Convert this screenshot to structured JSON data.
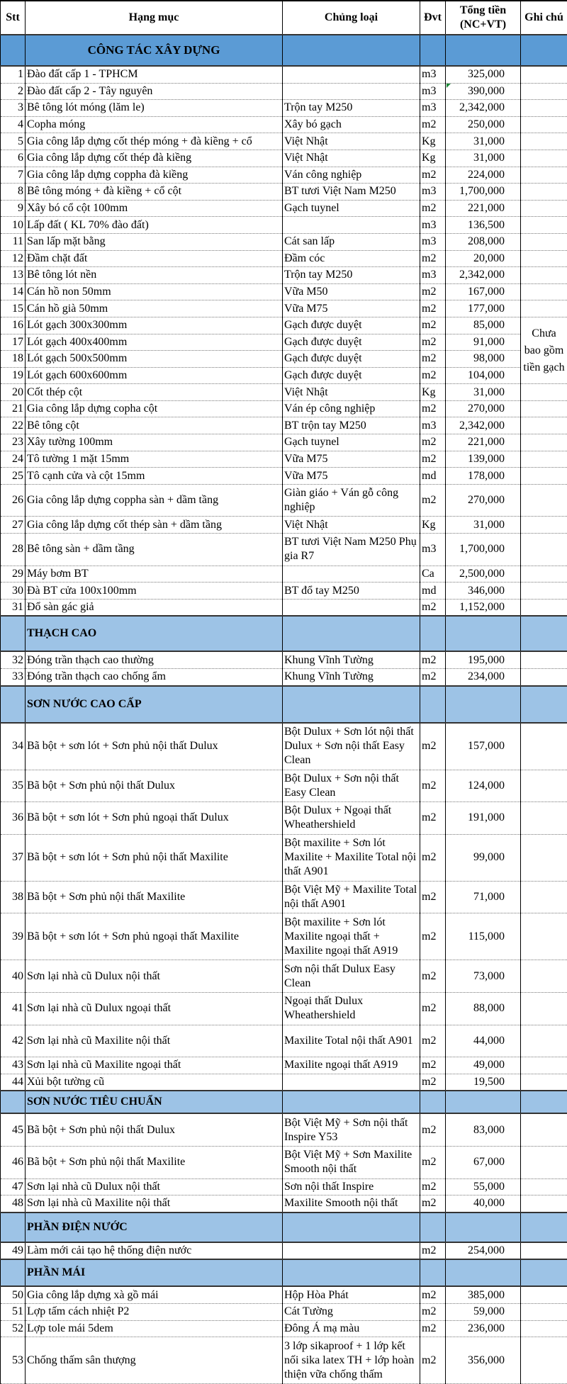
{
  "headers": {
    "stt": "Stt",
    "item": "Hạng mục",
    "type": "Chủng loại",
    "unit": "Đvt",
    "total": "Tổng tiền (NC+VT)",
    "note": "Ghi chú"
  },
  "colors": {
    "section_primary": "#5b9bd5",
    "section_secondary": "#9dc3e6",
    "error_indicator": "#1e8a3a"
  },
  "notes": {
    "tiles": "Chưa bao gồm tiền gạch"
  },
  "sections": [
    {
      "title": "CÔNG TÁC XÂY DỰNG",
      "rows": [
        {
          "stt": "1",
          "item": "Đào đất cấp 1 - TPHCM",
          "type": "",
          "unit": "m3",
          "total": "325,000"
        },
        {
          "stt": "2",
          "item": "Đào đất cấp 2 - Tây nguyên",
          "type": "",
          "unit": "m3",
          "total": "390,000"
        },
        {
          "stt": "3",
          "item": "Bê tông lót móng (lăm le)",
          "type": "Trộn tay M250",
          "unit": "m3",
          "total": "2,342,000"
        },
        {
          "stt": "4",
          "item": "Copha móng",
          "type": "Xây bó gạch",
          "unit": "m2",
          "total": "250,000"
        },
        {
          "stt": "5",
          "item": "Gia công lắp dựng cốt thép móng + đà kiềng + cổ",
          "type": "Việt Nhật",
          "unit": "Kg",
          "total": "31,000"
        },
        {
          "stt": "6",
          "item": "Gia công lắp dựng cốt thép đà kiềng",
          "type": "Việt Nhật",
          "unit": "Kg",
          "total": "31,000"
        },
        {
          "stt": "7",
          "item": "Gia công lắp dựng coppha đà kiềng",
          "type": "Ván công nghiệp",
          "unit": "m2",
          "total": "224,000"
        },
        {
          "stt": "8",
          "item": "Bê tông móng + đà kiềng + cổ cột",
          "type": "BT tươi Việt Nam M250",
          "unit": "m3",
          "total": "1,700,000"
        },
        {
          "stt": "9",
          "item": "Xây bó cổ cột 100mm",
          "type": "Gạch tuynel",
          "unit": "m2",
          "total": "221,000"
        },
        {
          "stt": "10",
          "item": "Lấp đất ( KL 70% đào đất)",
          "type": "",
          "unit": "m3",
          "total": "136,500"
        },
        {
          "stt": "11",
          "item": "San lấp mặt bằng",
          "type": "Cát san lấp",
          "unit": "m3",
          "total": "208,000"
        },
        {
          "stt": "12",
          "item": "Đầm chặt đất",
          "type": "Đầm cóc",
          "unit": "m2",
          "total": "20,000"
        },
        {
          "stt": "13",
          "item": "Bê tông lót nền",
          "type": "Trộn tay M250",
          "unit": "m3",
          "total": "2,342,000"
        },
        {
          "stt": "14",
          "item": "Cán hồ non 50mm",
          "type": "Vữa M50",
          "unit": "m2",
          "total": "167,000"
        },
        {
          "stt": "15",
          "item": "Cán hồ già 50mm",
          "type": "Vữa M75",
          "unit": "m2",
          "total": "177,000"
        },
        {
          "stt": "16",
          "item": "Lót gạch 300x300mm",
          "type": "Gạch được duyệt",
          "unit": "m2",
          "total": "85,000"
        },
        {
          "stt": "17",
          "item": "Lót gạch 400x400mm",
          "type": "Gạch được duyệt",
          "unit": "m2",
          "total": "91,000"
        },
        {
          "stt": "18",
          "item": "Lót gạch 500x500mm",
          "type": "Gạch được duyệt",
          "unit": "m2",
          "total": "98,000"
        },
        {
          "stt": "19",
          "item": "Lót gạch 600x600mm",
          "type": "Gạch được duyệt",
          "unit": "m2",
          "total": "104,000"
        },
        {
          "stt": "20",
          "item": "Cốt thép cột",
          "type": "Việt Nhật",
          "unit": "Kg",
          "total": "31,000"
        },
        {
          "stt": "21",
          "item": "Gia công lắp dựng copha cột",
          "type": "Ván ép công nghiệp",
          "unit": "m2",
          "total": "270,000"
        },
        {
          "stt": "22",
          "item": "Bê tông cột",
          "type": "BT trộn tay M250",
          "unit": "m3",
          "total": "2,342,000"
        },
        {
          "stt": "23",
          "item": "Xây tường 100mm",
          "type": "Gạch tuynel",
          "unit": "m2",
          "total": "221,000"
        },
        {
          "stt": "24",
          "item": "Tô tường 1 mặt 15mm",
          "type": "Vữa M75",
          "unit": "m2",
          "total": "139,000"
        },
        {
          "stt": "25",
          "item": "Tô cạnh cửa và cột 15mm",
          "type": "Vữa M75",
          "unit": "md",
          "total": "178,000"
        },
        {
          "stt": "26",
          "item": "Gia công lắp dựng coppha sàn + dầm tầng",
          "type": "Giàn giáo + Ván gỗ công nghiệp",
          "unit": "m2",
          "total": "270,000"
        },
        {
          "stt": "27",
          "item": "Gia công lắp dựng cốt thép sàn + dầm tầng",
          "type": "Việt Nhật",
          "unit": "Kg",
          "total": "31,000"
        },
        {
          "stt": "28",
          "item": "Bê tông sàn + dầm tầng",
          "type": "BT tươi Việt Nam M250 Phụ gia R7",
          "unit": "m3",
          "total": "1,700,000"
        },
        {
          "stt": "29",
          "item": "Máy bơm BT",
          "type": "",
          "unit": "Ca",
          "total": "2,500,000"
        },
        {
          "stt": "30",
          "item": "Đà BT cửa 100x100mm",
          "type": "BT đổ tay M250",
          "unit": "md",
          "total": "346,000"
        },
        {
          "stt": "31",
          "item": "Đổ sàn gác giả",
          "type": "",
          "unit": "m2",
          "total": "1,152,000"
        }
      ]
    },
    {
      "title": "THẠCH CAO",
      "rows": [
        {
          "stt": "32",
          "item": "Đóng trần thạch cao thường",
          "type": "Khung Vĩnh Tường",
          "unit": "m2",
          "total": "195,000"
        },
        {
          "stt": "33",
          "item": "Đóng trần thạch cao chống ẩm",
          "type": "Khung Vĩnh Tường",
          "unit": "m2",
          "total": "234,000"
        }
      ]
    },
    {
      "title": "SƠN NƯỚC CAO CẤP",
      "rows": [
        {
          "stt": "34",
          "item": "Bã bột + sơn lót + Sơn phủ nội thất Dulux",
          "type": "Bột Dulux + Sơn lót nội thất Dulux + Sơn nội thất Easy Clean",
          "unit": "m2",
          "total": "157,000"
        },
        {
          "stt": "35",
          "item": "Bã bột  + Sơn phủ nội thất Dulux",
          "type": "Bột Dulux  + Sơn nội thất Easy Clean",
          "unit": "m2",
          "total": "124,000"
        },
        {
          "stt": "36",
          "item": "Bã bột + sơn lót + Sơn phủ ngoại thất Dulux",
          "type": "Bột Dulux +  Ngoại thất Wheathershield",
          "unit": "m2",
          "total": "191,000"
        },
        {
          "stt": "37",
          "item": "Bã bột + sơn lót + Sơn phủ nội thất Maxilite",
          "type": "Bột maxilite + Sơn lót Maxilite + Maxilite Total nội thất A901",
          "unit": "m2",
          "total": "99,000"
        },
        {
          "stt": "38",
          "item": "Bã bột +  Sơn phủ nội thất Maxilite",
          "type": "Bột Việt Mỹ  + Maxilite Total nội thất A901",
          "unit": "m2",
          "total": "71,000"
        },
        {
          "stt": "39",
          "item": "Bã bột + sơn lót + Sơn phủ ngoại thất Maxilite",
          "type": "Bột maxilite + Sơn lót Maxilite ngoại thất + Maxilite ngoại thất A919",
          "unit": "m2",
          "total": "115,000"
        },
        {
          "stt": "40",
          "item": "Sơn lại nhà cũ Dulux nội thất",
          "type": " Sơn nội thất Dulux Easy Clean",
          "unit": "m2",
          "total": "73,000"
        },
        {
          "stt": "41",
          "item": "Sơn lại nhà cũ Dulux ngoại thất",
          "type": "Ngoại thất Dulux Wheathershield",
          "unit": "m2",
          "total": "88,000"
        },
        {
          "stt": "42",
          "item": "Sơn lại nhà cũ Maxilite nội thất",
          "type": "Maxilite Total nội thất A901",
          "unit": "m2",
          "total": "44,000"
        },
        {
          "stt": "43",
          "item": "Sơn lại nhà cũ Maxilite ngoại thất",
          "type": "Maxilite ngoại thất A919",
          "unit": "m2",
          "total": "49,000"
        },
        {
          "stt": "44",
          "item": "Xủi bột tường cũ",
          "type": "",
          "unit": "m2",
          "total": "19,500"
        }
      ]
    },
    {
      "title": "SƠN NƯỚC TIÊU CHUẨN",
      "rows": [
        {
          "stt": "45",
          "item": "Bã bột  + Sơn phủ nội thất Dulux",
          "type": "Bột Việt Mỹ  + Sơn nội thất Inspire Y53",
          "unit": "m2",
          "total": "83,000"
        },
        {
          "stt": "46",
          "item": "Bã bột + Sơn phủ nội thất Maxilite",
          "type": "Bột Việt Mỹ + Sơn Maxilite Smooth nội thất",
          "unit": "m2",
          "total": "67,000"
        },
        {
          "stt": "47",
          "item": "Sơn lại nhà cũ Dulux nội thất",
          "type": " Sơn nội thất Inspire",
          "unit": "m2",
          "total": "55,000"
        },
        {
          "stt": "48",
          "item": "Sơn lại nhà cũ Maxilite nội thất",
          "type": "Maxilite Smooth nội thất",
          "unit": "m2",
          "total": "40,000"
        }
      ]
    },
    {
      "title": "PHẦN ĐIỆN NƯỚC",
      "rows": [
        {
          "stt": "49",
          "item": "Làm mới cải tạo hệ thống điện nước",
          "type": "",
          "unit": "m2",
          "total": "254,000"
        }
      ]
    },
    {
      "title": "PHẦN MÁI",
      "rows": [
        {
          "stt": "50",
          "item": "Gia công lắp dựng xà gồ mái",
          "type": "Hộp Hòa Phát",
          "unit": "m2",
          "total": "385,000"
        },
        {
          "stt": "51",
          "item": "Lợp tấm cách nhiệt P2",
          "type": "Cát Tường",
          "unit": "m2",
          "total": "59,000"
        },
        {
          "stt": "52",
          "item": "Lợp tole mái 5dem",
          "type": "Đông Á mạ màu",
          "unit": "m2",
          "total": "236,000"
        },
        {
          "stt": "53",
          "item": "Chống thấm sân thượng",
          "type": "3 lớp sikaproof + 1 lớp kết nối sika latex TH + lớp hoàn thiện vữa chống thấm",
          "unit": "m2",
          "total": "356,000"
        }
      ]
    }
  ]
}
